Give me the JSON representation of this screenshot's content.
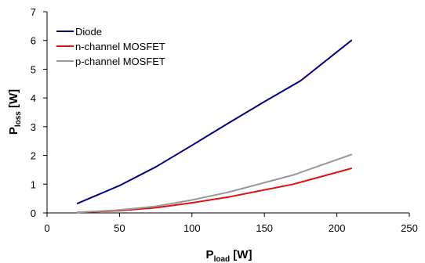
{
  "chart_data": {
    "type": "line",
    "xlabel": {
      "main": "P",
      "sub": "load",
      "unit": " [W]"
    },
    "ylabel": {
      "main": "P",
      "sub": "loss",
      "unit": " [W]"
    },
    "xlim": [
      0,
      250
    ],
    "ylim": [
      0,
      7
    ],
    "xticks": [
      0,
      50,
      100,
      150,
      200,
      250
    ],
    "yticks": [
      0,
      1,
      2,
      3,
      4,
      5,
      6,
      7
    ],
    "grid": false,
    "legend_position": "top-left",
    "series": [
      {
        "name": "Diode",
        "color": "#000080",
        "x": [
          21,
          50,
          75,
          100,
          125,
          150,
          175,
          210
        ],
        "y": [
          0.33,
          0.95,
          1.6,
          2.35,
          3.12,
          3.87,
          4.6,
          6.0
        ]
      },
      {
        "name": "n-channel MOSFET",
        "color": "#e01010",
        "x": [
          21,
          50,
          75,
          100,
          125,
          150,
          170,
          210
        ],
        "y": [
          0.02,
          0.08,
          0.18,
          0.35,
          0.55,
          0.8,
          1.0,
          1.55
        ]
      },
      {
        "name": "p-channel MOSFET",
        "color": "#999999",
        "x": [
          21,
          50,
          75,
          100,
          125,
          150,
          170,
          210
        ],
        "y": [
          0.02,
          0.1,
          0.23,
          0.45,
          0.72,
          1.05,
          1.32,
          2.03
        ]
      }
    ]
  }
}
